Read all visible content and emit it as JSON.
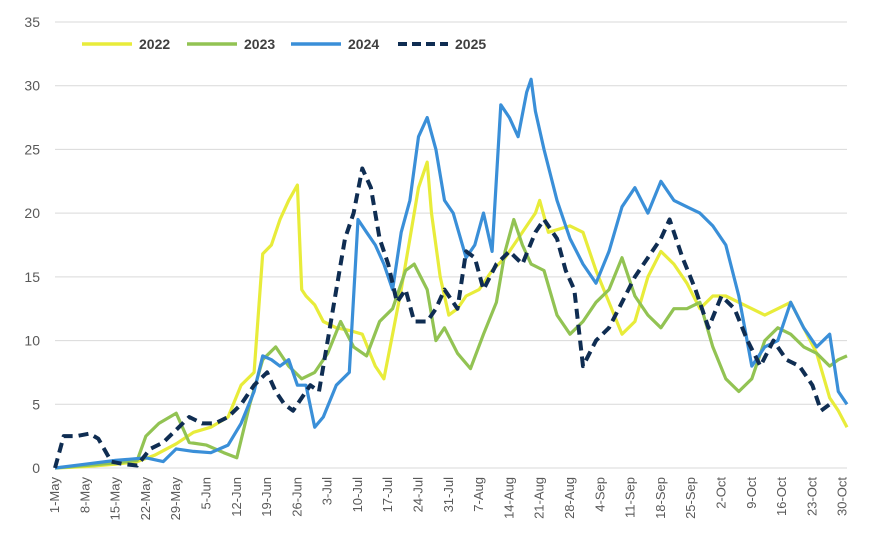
{
  "chart_data": {
    "type": "line",
    "title": "",
    "xlabel": "",
    "ylabel": "",
    "ylim": [
      0,
      35
    ],
    "yticks": [
      0,
      5,
      10,
      15,
      20,
      25,
      30,
      35
    ],
    "xlim": [
      "1-May",
      "31-Oct"
    ],
    "xticks": [
      "1-May",
      "8-May",
      "15-May",
      "22-May",
      "29-May",
      "5-Jun",
      "12-Jun",
      "19-Jun",
      "26-Jun",
      "3-Jul",
      "10-Jul",
      "17-Jul",
      "24-Jul",
      "31-Jul",
      "7-Aug",
      "14-Aug",
      "21-Aug",
      "28-Aug",
      "4-Sep",
      "11-Sep",
      "18-Sep",
      "25-Sep",
      "2-Oct",
      "9-Oct",
      "16-Oct",
      "23-Oct",
      "30-Oct"
    ],
    "grid": "horizontal",
    "legend_position": "top-left",
    "series": [
      {
        "name": "2022",
        "color": "#e8ec3a",
        "dash": "solid",
        "x": [
          "1-May",
          "8-May",
          "15-May",
          "20-May",
          "24-May",
          "29-May",
          "2-Jun",
          "6-Jun",
          "10-Jun",
          "13-Jun",
          "16-Jun",
          "18-Jun",
          "20-Jun",
          "22-Jun",
          "24-Jun",
          "26-Jun",
          "27-Jun",
          "28-Jun",
          "30-Jun",
          "2-Jul",
          "5-Jul",
          "8-Jul",
          "11-Jul",
          "14-Jul",
          "16-Jul",
          "18-Jul",
          "20-Jul",
          "22-Jul",
          "24-Jul",
          "26-Jul",
          "27-Jul",
          "29-Jul",
          "31-Jul",
          "2-Aug",
          "4-Aug",
          "7-Aug",
          "10-Aug",
          "13-Aug",
          "16-Aug",
          "18-Aug",
          "20-Aug",
          "21-Aug",
          "23-Aug",
          "26-Aug",
          "28-Aug",
          "31-Aug",
          "3-Sep",
          "6-Sep",
          "9-Sep",
          "12-Sep",
          "15-Sep",
          "18-Sep",
          "21-Sep",
          "24-Sep",
          "27-Sep",
          "30-Sep",
          "3-Oct",
          "6-Oct",
          "9-Oct",
          "12-Oct",
          "15-Oct",
          "18-Oct",
          "21-Oct",
          "24-Oct",
          "27-Oct",
          "29-Oct",
          "31-Oct"
        ],
        "y": [
          0,
          0.1,
          0.3,
          0.5,
          1.0,
          1.9,
          2.8,
          3.2,
          4.0,
          6.5,
          7.5,
          16.8,
          17.5,
          19.5,
          21.0,
          22.2,
          14.0,
          13.5,
          12.8,
          11.5,
          11.0,
          10.8,
          10.5,
          8.0,
          7.0,
          10.5,
          14.0,
          18.0,
          22.0,
          24.0,
          20.0,
          15.0,
          12.0,
          12.5,
          13.5,
          14.0,
          15.5,
          16.5,
          18.0,
          19.0,
          20.0,
          21.0,
          18.5,
          18.8,
          19.0,
          18.5,
          15.5,
          13.0,
          10.5,
          11.5,
          15.0,
          17.0,
          16.0,
          14.5,
          12.5,
          13.5,
          13.5,
          13.0,
          12.5,
          12.0,
          12.5,
          13.0,
          11.0,
          9.0,
          5.5,
          4.5,
          3.2
        ]
      },
      {
        "name": "2023",
        "color": "#92c353",
        "dash": "solid",
        "x": [
          "1-May",
          "8-May",
          "15-May",
          "20-May",
          "22-May",
          "25-May",
          "29-May",
          "1-Jun",
          "5-Jun",
          "9-Jun",
          "12-Jun",
          "15-Jun",
          "18-Jun",
          "21-Jun",
          "24-Jun",
          "27-Jun",
          "30-Jun",
          "3-Jul",
          "6-Jul",
          "9-Jul",
          "12-Jul",
          "15-Jul",
          "18-Jul",
          "21-Jul",
          "23-Jul",
          "26-Jul",
          "28-Jul",
          "30-Jul",
          "2-Aug",
          "5-Aug",
          "8-Aug",
          "11-Aug",
          "13-Aug",
          "15-Aug",
          "17-Aug",
          "19-Aug",
          "22-Aug",
          "25-Aug",
          "28-Aug",
          "31-Aug",
          "3-Sep",
          "6-Sep",
          "9-Sep",
          "12-Sep",
          "15-Sep",
          "18-Sep",
          "21-Sep",
          "24-Sep",
          "27-Sep",
          "30-Sep",
          "3-Oct",
          "6-Oct",
          "9-Oct",
          "12-Oct",
          "15-Oct",
          "18-Oct",
          "21-Oct",
          "24-Oct",
          "27-Oct",
          "29-Oct",
          "31-Oct"
        ],
        "y": [
          0,
          0.2,
          0.4,
          0.6,
          2.5,
          3.5,
          4.3,
          2.0,
          1.8,
          1.2,
          0.8,
          5.0,
          8.5,
          9.5,
          8.0,
          7.0,
          7.5,
          9.0,
          11.5,
          9.5,
          8.8,
          11.5,
          12.5,
          15.5,
          16.0,
          14.0,
          10.0,
          11.0,
          9.0,
          7.8,
          10.5,
          13.0,
          17.0,
          19.5,
          17.5,
          16.0,
          15.5,
          12.0,
          10.5,
          11.5,
          13.0,
          14.0,
          16.5,
          13.5,
          12.0,
          11.0,
          12.5,
          12.5,
          13.0,
          9.5,
          7.0,
          6.0,
          7.0,
          10.0,
          11.0,
          10.5,
          9.5,
          9.0,
          8.0,
          8.5,
          8.8
        ]
      },
      {
        "name": "2024",
        "color": "#3a8fd8",
        "dash": "solid",
        "x": [
          "1-May",
          "8-May",
          "15-May",
          "22-May",
          "26-May",
          "29-May",
          "2-Jun",
          "6-Jun",
          "10-Jun",
          "13-Jun",
          "16-Jun",
          "18-Jun",
          "20-Jun",
          "22-Jun",
          "24-Jun",
          "26-Jun",
          "28-Jun",
          "30-Jun",
          "2-Jul",
          "5-Jul",
          "8-Jul",
          "10-Jul",
          "12-Jul",
          "14-Jul",
          "16-Jul",
          "18-Jul",
          "20-Jul",
          "22-Jul",
          "24-Jul",
          "26-Jul",
          "28-Jul",
          "30-Jul",
          "1-Aug",
          "4-Aug",
          "6-Aug",
          "8-Aug",
          "10-Aug",
          "12-Aug",
          "14-Aug",
          "16-Aug",
          "18-Aug",
          "19-Aug",
          "20-Aug",
          "22-Aug",
          "25-Aug",
          "28-Aug",
          "31-Aug",
          "3-Sep",
          "6-Sep",
          "9-Sep",
          "12-Sep",
          "15-Sep",
          "18-Sep",
          "21-Sep",
          "24-Sep",
          "27-Sep",
          "30-Sep",
          "3-Oct",
          "6-Oct",
          "9-Oct",
          "12-Oct",
          "15-Oct",
          "18-Oct",
          "21-Oct",
          "24-Oct",
          "27-Oct",
          "29-Oct",
          "31-Oct"
        ],
        "y": [
          0,
          0.3,
          0.6,
          0.8,
          0.5,
          1.5,
          1.3,
          1.2,
          1.8,
          3.5,
          6.0,
          8.8,
          8.5,
          8.0,
          8.5,
          6.5,
          6.5,
          3.2,
          4.0,
          6.5,
          7.5,
          19.5,
          18.5,
          17.5,
          16.0,
          14.0,
          18.5,
          21.0,
          26.0,
          27.5,
          25.0,
          21.0,
          20.0,
          16.5,
          17.5,
          20.0,
          17.0,
          28.5,
          27.5,
          26.0,
          29.5,
          30.5,
          28.0,
          25.0,
          21.0,
          18.0,
          16.0,
          14.5,
          17.0,
          20.5,
          22.0,
          20.0,
          22.5,
          21.0,
          20.5,
          20.0,
          19.0,
          17.5,
          13.5,
          8.0,
          9.5,
          10.0,
          13.0,
          11.0,
          9.5,
          10.5,
          6.0,
          5.0
        ]
      },
      {
        "name": "2025",
        "color": "#0f2d52",
        "dash": "dashed",
        "x": [
          "1-May",
          "3-May",
          "6-May",
          "9-May",
          "11-May",
          "14-May",
          "17-May",
          "20-May",
          "23-May",
          "26-May",
          "29-May",
          "1-Jun",
          "4-Jun",
          "7-Jun",
          "10-Jun",
          "13-Jun",
          "16-Jun",
          "19-Jun",
          "21-Jun",
          "23-Jun",
          "25-Jun",
          "27-Jun",
          "29-Jun",
          "1-Jul",
          "3-Jul",
          "5-Jul",
          "7-Jul",
          "9-Jul",
          "11-Jul",
          "13-Jul",
          "15-Jul",
          "17-Jul",
          "19-Jul",
          "21-Jul",
          "23-Jul",
          "26-Jul",
          "28-Jul",
          "30-Jul",
          "2-Aug",
          "4-Aug",
          "6-Aug",
          "8-Aug",
          "11-Aug",
          "14-Aug",
          "17-Aug",
          "20-Aug",
          "22-Aug",
          "25-Aug",
          "27-Aug",
          "29-Aug",
          "31-Aug",
          "3-Sep",
          "6-Sep",
          "9-Sep",
          "12-Sep",
          "15-Sep",
          "18-Sep",
          "20-Sep",
          "23-Sep",
          "26-Sep",
          "29-Sep",
          "2-Oct",
          "5-Oct",
          "8-Oct",
          "11-Oct",
          "14-Oct",
          "17-Oct",
          "20-Oct",
          "23-Oct",
          "25-Oct",
          "27-Oct"
        ],
        "y": [
          0,
          2.5,
          2.5,
          2.7,
          2.3,
          0.5,
          0.3,
          0.2,
          1.5,
          2.0,
          3.0,
          4.0,
          3.5,
          3.5,
          4.0,
          5.0,
          6.5,
          7.5,
          6.0,
          5.0,
          4.5,
          5.5,
          6.5,
          6.0,
          10.0,
          14.0,
          18.0,
          20.0,
          23.5,
          22.0,
          18.0,
          16.0,
          13.0,
          14.0,
          11.5,
          11.5,
          12.5,
          14.0,
          12.5,
          17.0,
          16.5,
          14.0,
          16.0,
          17.0,
          16.0,
          18.5,
          19.5,
          18.0,
          15.5,
          14.0,
          8.0,
          10.0,
          11.0,
          13.0,
          15.0,
          16.5,
          18.0,
          19.5,
          16.5,
          14.0,
          11.0,
          13.5,
          12.5,
          10.0,
          8.0,
          10.0,
          8.5,
          8.0,
          6.5,
          4.5,
          5.0
        ]
      }
    ]
  }
}
